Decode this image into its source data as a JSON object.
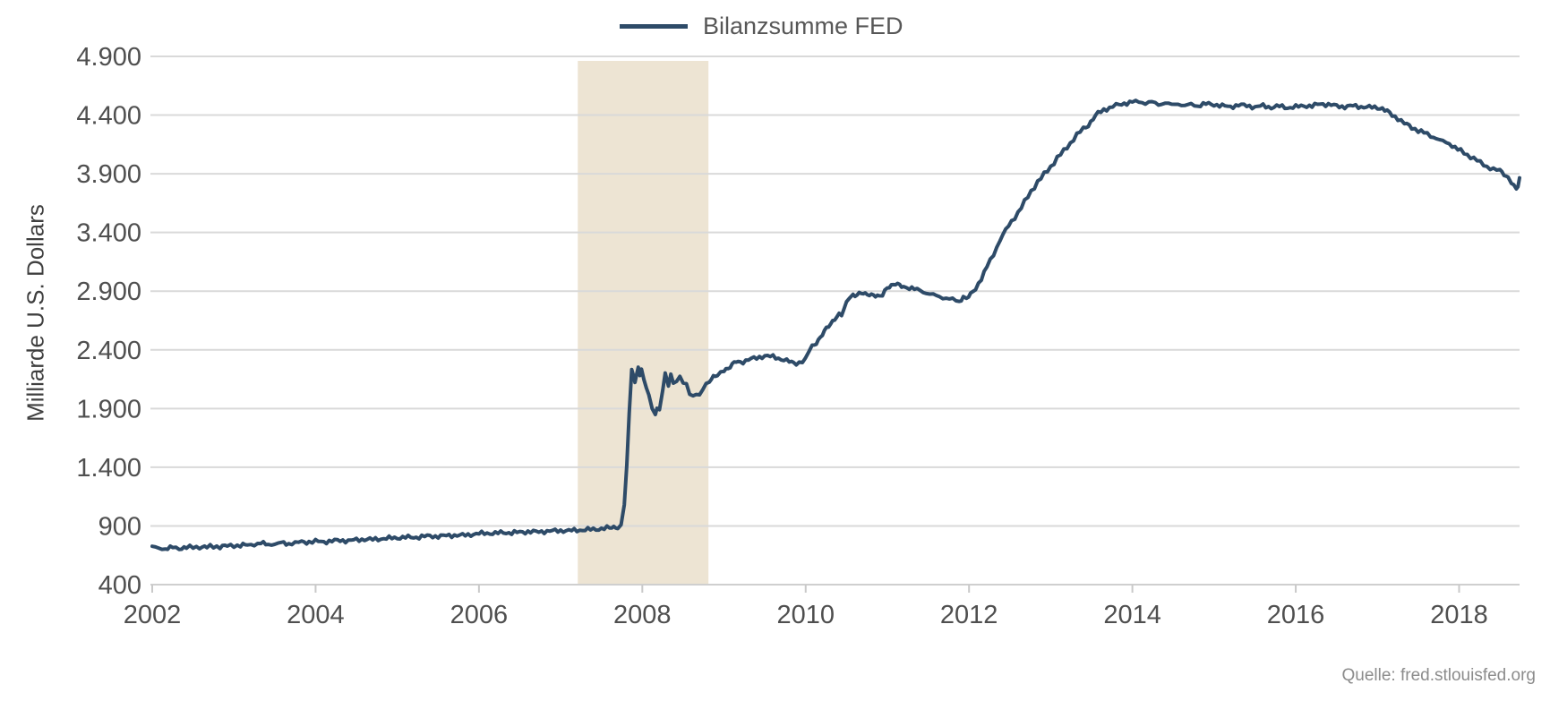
{
  "legend": {
    "label": "Bilanzsumme FED"
  },
  "y_axis": {
    "title": "Milliarde U.S. Dollars",
    "ticks": [
      "4.900",
      "4.400",
      "3.900",
      "3.400",
      "2.900",
      "2.400",
      "1.900",
      "1.400",
      "900",
      "400"
    ]
  },
  "x_axis": {
    "ticks": [
      "2002",
      "2004",
      "2006",
      "2008",
      "2010",
      "2012",
      "2014",
      "2016",
      "2018"
    ]
  },
  "source": {
    "label": "Quelle: fred.stlouisfed.org"
  },
  "colors": {
    "line": "#2e4b68",
    "recession_band": "#ede4d3",
    "gridline": "#d9d9d9",
    "axis_line": "#cfcfcf",
    "tick_mark": "#c9c9c9",
    "tick_label": "#4f4f4f",
    "legend_text": "#575757",
    "source_text": "#8c8c8c"
  },
  "chart_data": {
    "type": "line",
    "title": "",
    "ylabel": "Milliarde U.S. Dollars",
    "xlabel": "",
    "ylim": [
      400,
      4900
    ],
    "xlim": [
      2002,
      2018.74
    ],
    "y_ticks": [
      4900,
      4400,
      3900,
      3400,
      2900,
      2400,
      1900,
      1400,
      900,
      400
    ],
    "x_ticks": [
      2002,
      2004,
      2006,
      2008,
      2010,
      2012,
      2014,
      2016,
      2018
    ],
    "grid": "horizontal",
    "legend_position": "top-center",
    "recession_band": {
      "x_start": 2007.21,
      "x_end": 2008.81
    },
    "series": [
      {
        "name": "Bilanzsumme FED",
        "points": [
          [
            2002.0,
            720
          ],
          [
            2002.08,
            711
          ],
          [
            2002.16,
            707
          ],
          [
            2002.25,
            714
          ],
          [
            2002.33,
            710
          ],
          [
            2002.42,
            718
          ],
          [
            2002.5,
            716
          ],
          [
            2002.58,
            722
          ],
          [
            2002.67,
            719
          ],
          [
            2002.75,
            726
          ],
          [
            2002.83,
            723
          ],
          [
            2002.92,
            730
          ],
          [
            2003.0,
            734
          ],
          [
            2003.08,
            731
          ],
          [
            2003.17,
            739
          ],
          [
            2003.25,
            744
          ],
          [
            2003.33,
            750
          ],
          [
            2003.42,
            743
          ],
          [
            2003.5,
            747
          ],
          [
            2003.58,
            753
          ],
          [
            2003.67,
            749
          ],
          [
            2003.75,
            757
          ],
          [
            2003.83,
            761
          ],
          [
            2003.92,
            764
          ],
          [
            2004.0,
            768
          ],
          [
            2004.1,
            765
          ],
          [
            2004.2,
            772
          ],
          [
            2004.3,
            777
          ],
          [
            2004.4,
            774
          ],
          [
            2004.5,
            781
          ],
          [
            2004.6,
            787
          ],
          [
            2004.7,
            784
          ],
          [
            2004.8,
            791
          ],
          [
            2004.9,
            795
          ],
          [
            2005.0,
            799
          ],
          [
            2005.1,
            804
          ],
          [
            2005.2,
            801
          ],
          [
            2005.3,
            809
          ],
          [
            2005.4,
            814
          ],
          [
            2005.5,
            811
          ],
          [
            2005.6,
            817
          ],
          [
            2005.7,
            821
          ],
          [
            2005.8,
            819
          ],
          [
            2005.9,
            827
          ],
          [
            2006.0,
            834
          ],
          [
            2006.1,
            839
          ],
          [
            2006.2,
            837
          ],
          [
            2006.3,
            844
          ],
          [
            2006.4,
            841
          ],
          [
            2006.5,
            847
          ],
          [
            2006.6,
            851
          ],
          [
            2006.7,
            849
          ],
          [
            2006.8,
            854
          ],
          [
            2006.9,
            857
          ],
          [
            2007.0,
            861
          ],
          [
            2007.1,
            859
          ],
          [
            2007.2,
            864
          ],
          [
            2007.3,
            867
          ],
          [
            2007.4,
            871
          ],
          [
            2007.5,
            877
          ],
          [
            2007.6,
            884
          ],
          [
            2007.65,
            889
          ],
          [
            2007.7,
            894
          ],
          [
            2007.74,
            900
          ],
          [
            2007.78,
            1080
          ],
          [
            2007.81,
            1420
          ],
          [
            2007.84,
            1860
          ],
          [
            2007.87,
            2240
          ],
          [
            2007.89,
            2180
          ],
          [
            2007.91,
            2125
          ],
          [
            2007.93,
            2205
          ],
          [
            2007.95,
            2260
          ],
          [
            2007.97,
            2170
          ],
          [
            2007.99,
            2225
          ],
          [
            2008.02,
            2150
          ],
          [
            2008.05,
            2060
          ],
          [
            2008.08,
            2020
          ],
          [
            2008.12,
            1905
          ],
          [
            2008.16,
            1855
          ],
          [
            2008.18,
            1915
          ],
          [
            2008.21,
            1877
          ],
          [
            2008.25,
            2055
          ],
          [
            2008.28,
            2200
          ],
          [
            2008.32,
            2095
          ],
          [
            2008.35,
            2210
          ],
          [
            2008.38,
            2110
          ],
          [
            2008.42,
            2140
          ],
          [
            2008.46,
            2155
          ],
          [
            2008.5,
            2125
          ],
          [
            2008.54,
            2105
          ],
          [
            2008.58,
            2040
          ],
          [
            2008.62,
            2000
          ],
          [
            2008.66,
            2025
          ],
          [
            2008.7,
            2000
          ],
          [
            2008.74,
            2070
          ],
          [
            2008.78,
            2110
          ],
          [
            2008.82,
            2140
          ],
          [
            2008.87,
            2165
          ],
          [
            2008.92,
            2180
          ],
          [
            2008.96,
            2205
          ],
          [
            2009.0,
            2230
          ],
          [
            2009.05,
            2245
          ],
          [
            2009.1,
            2270
          ],
          [
            2009.15,
            2300
          ],
          [
            2009.2,
            2292
          ],
          [
            2009.3,
            2318
          ],
          [
            2009.4,
            2330
          ],
          [
            2009.5,
            2350
          ],
          [
            2009.6,
            2340
          ],
          [
            2009.7,
            2322
          ],
          [
            2009.8,
            2300
          ],
          [
            2009.85,
            2285
          ],
          [
            2009.92,
            2292
          ],
          [
            2010.0,
            2315
          ],
          [
            2010.04,
            2390
          ],
          [
            2010.08,
            2430
          ],
          [
            2010.13,
            2465
          ],
          [
            2010.18,
            2505
          ],
          [
            2010.23,
            2555
          ],
          [
            2010.28,
            2600
          ],
          [
            2010.33,
            2645
          ],
          [
            2010.38,
            2690
          ],
          [
            2010.41,
            2700
          ],
          [
            2010.44,
            2695
          ],
          [
            2010.47,
            2740
          ],
          [
            2010.5,
            2800
          ],
          [
            2010.54,
            2855
          ],
          [
            2010.58,
            2872
          ],
          [
            2010.63,
            2868
          ],
          [
            2010.68,
            2880
          ],
          [
            2010.73,
            2872
          ],
          [
            2010.78,
            2878
          ],
          [
            2010.83,
            2870
          ],
          [
            2010.88,
            2855
          ],
          [
            2010.9,
            2843
          ],
          [
            2010.94,
            2865
          ],
          [
            2011.0,
            2938
          ],
          [
            2011.05,
            2950
          ],
          [
            2011.1,
            2960
          ],
          [
            2011.15,
            2945
          ],
          [
            2011.2,
            2940
          ],
          [
            2011.27,
            2928
          ],
          [
            2011.33,
            2918
          ],
          [
            2011.4,
            2905
          ],
          [
            2011.48,
            2885
          ],
          [
            2011.56,
            2868
          ],
          [
            2011.64,
            2852
          ],
          [
            2011.72,
            2840
          ],
          [
            2011.8,
            2828
          ],
          [
            2011.88,
            2813
          ],
          [
            2011.93,
            2858
          ],
          [
            2011.97,
            2840
          ],
          [
            2012.02,
            2868
          ],
          [
            2012.08,
            2920
          ],
          [
            2012.15,
            3010
          ],
          [
            2012.22,
            3110
          ],
          [
            2012.3,
            3210
          ],
          [
            2012.38,
            3340
          ],
          [
            2012.45,
            3420
          ],
          [
            2012.52,
            3490
          ],
          [
            2012.6,
            3570
          ],
          [
            2012.68,
            3660
          ],
          [
            2012.76,
            3750
          ],
          [
            2012.84,
            3830
          ],
          [
            2012.92,
            3895
          ],
          [
            2013.0,
            3960
          ],
          [
            2013.08,
            4035
          ],
          [
            2013.16,
            4095
          ],
          [
            2013.24,
            4160
          ],
          [
            2013.32,
            4230
          ],
          [
            2013.4,
            4285
          ],
          [
            2013.46,
            4315
          ],
          [
            2013.52,
            4370
          ],
          [
            2013.58,
            4415
          ],
          [
            2013.65,
            4445
          ],
          [
            2013.72,
            4462
          ],
          [
            2013.8,
            4482
          ],
          [
            2013.9,
            4500
          ],
          [
            2014.0,
            4510
          ],
          [
            2014.08,
            4516
          ],
          [
            2014.16,
            4502
          ],
          [
            2014.24,
            4510
          ],
          [
            2014.32,
            4492
          ],
          [
            2014.4,
            4504
          ],
          [
            2014.48,
            4486
          ],
          [
            2014.56,
            4498
          ],
          [
            2014.64,
            4478
          ],
          [
            2014.72,
            4492
          ],
          [
            2014.8,
            4480
          ],
          [
            2014.9,
            4496
          ],
          [
            2015.0,
            4490
          ],
          [
            2015.1,
            4479
          ],
          [
            2015.2,
            4471
          ],
          [
            2015.3,
            4486
          ],
          [
            2015.4,
            4480
          ],
          [
            2015.5,
            4469
          ],
          [
            2015.6,
            4479
          ],
          [
            2015.7,
            4466
          ],
          [
            2015.8,
            4476
          ],
          [
            2015.9,
            4463
          ],
          [
            2016.0,
            4469
          ],
          [
            2016.1,
            4481
          ],
          [
            2016.2,
            4476
          ],
          [
            2016.3,
            4497
          ],
          [
            2016.4,
            4489
          ],
          [
            2016.5,
            4479
          ],
          [
            2016.6,
            4471
          ],
          [
            2016.7,
            4479
          ],
          [
            2016.8,
            4471
          ],
          [
            2016.9,
            4466
          ],
          [
            2017.0,
            4466
          ],
          [
            2017.06,
            4455
          ],
          [
            2017.12,
            4430
          ],
          [
            2017.18,
            4400
          ],
          [
            2017.25,
            4372
          ],
          [
            2017.33,
            4330
          ],
          [
            2017.42,
            4295
          ],
          [
            2017.5,
            4268
          ],
          [
            2017.57,
            4250
          ],
          [
            2017.65,
            4225
          ],
          [
            2017.72,
            4202
          ],
          [
            2017.8,
            4175
          ],
          [
            2017.88,
            4158
          ],
          [
            2017.95,
            4125
          ],
          [
            2018.02,
            4095
          ],
          [
            2018.1,
            4060
          ],
          [
            2018.18,
            4032
          ],
          [
            2018.26,
            3995
          ],
          [
            2018.34,
            3962
          ],
          [
            2018.42,
            3938
          ],
          [
            2018.5,
            3925
          ],
          [
            2018.55,
            3902
          ],
          [
            2018.6,
            3868
          ],
          [
            2018.64,
            3825
          ],
          [
            2018.67,
            3788
          ],
          [
            2018.7,
            3770
          ],
          [
            2018.72,
            3795
          ],
          [
            2018.74,
            3865
          ]
        ]
      }
    ]
  }
}
